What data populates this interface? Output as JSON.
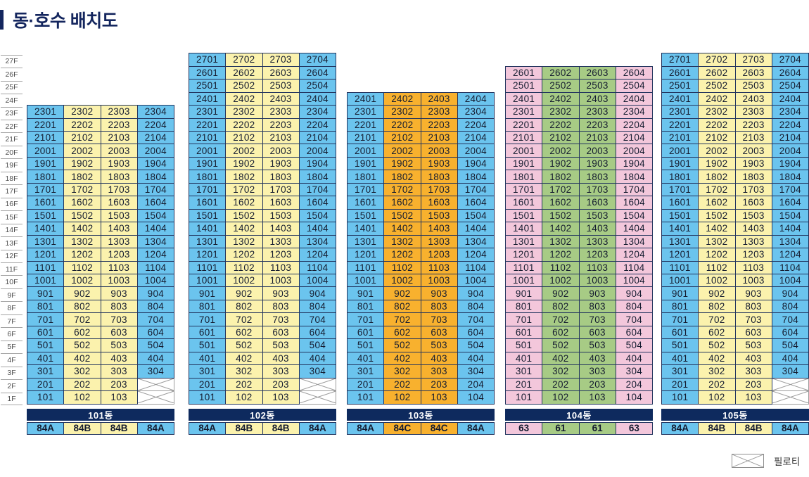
{
  "title": "동·호수 배치도",
  "legend": {
    "label": "필로티"
  },
  "colors": {
    "blue": "#6BC4EE",
    "yellow": "#FBF2AD",
    "orange": "#F8B12E",
    "green": "#A7CB85",
    "pink": "#F3C7DB",
    "navy": "#0E2A5E",
    "grid_border": "#22345E",
    "piloti_line": "#999999"
  },
  "floor_axis": {
    "labels": [
      "27F",
      "26F",
      "25F",
      "24F",
      "23F",
      "22F",
      "21F",
      "20F",
      "19F",
      "18F",
      "17F",
      "16F",
      "15F",
      "14F",
      "13F",
      "12F",
      "11F",
      "10F",
      "9F",
      "8F",
      "7F",
      "6F",
      "5F",
      "4F",
      "3F",
      "2F",
      "1F"
    ]
  },
  "buildings": [
    {
      "name": "101동",
      "column_colors": [
        "blue",
        "yellow",
        "yellow",
        "blue"
      ],
      "unit_types": [
        "84A",
        "84B",
        "84B",
        "84A"
      ],
      "rows": [
        [
          "2301",
          "2302",
          "2303",
          "2304"
        ],
        [
          "2201",
          "2202",
          "2203",
          "2204"
        ],
        [
          "2101",
          "2102",
          "2103",
          "2104"
        ],
        [
          "2001",
          "2002",
          "2003",
          "2004"
        ],
        [
          "1901",
          "1902",
          "1903",
          "1904"
        ],
        [
          "1801",
          "1802",
          "1803",
          "1804"
        ],
        [
          "1701",
          "1702",
          "1703",
          "1704"
        ],
        [
          "1601",
          "1602",
          "1603",
          "1604"
        ],
        [
          "1501",
          "1502",
          "1503",
          "1504"
        ],
        [
          "1401",
          "1402",
          "1403",
          "1404"
        ],
        [
          "1301",
          "1302",
          "1303",
          "1304"
        ],
        [
          "1201",
          "1202",
          "1203",
          "1204"
        ],
        [
          "1101",
          "1102",
          "1103",
          "1104"
        ],
        [
          "1001",
          "1002",
          "1003",
          "1004"
        ],
        [
          "901",
          "902",
          "903",
          "904"
        ],
        [
          "801",
          "802",
          "803",
          "804"
        ],
        [
          "701",
          "702",
          "703",
          "704"
        ],
        [
          "601",
          "602",
          "603",
          "604"
        ],
        [
          "501",
          "502",
          "503",
          "504"
        ],
        [
          "401",
          "402",
          "403",
          "404"
        ],
        [
          "301",
          "302",
          "303",
          "304"
        ],
        [
          "201",
          "202",
          "203",
          null
        ],
        [
          "101",
          "102",
          "103",
          null
        ]
      ]
    },
    {
      "name": "102동",
      "column_colors": [
        "blue",
        "yellow",
        "yellow",
        "blue"
      ],
      "unit_types": [
        "84A",
        "84B",
        "84B",
        "84A"
      ],
      "rows": [
        [
          "2701",
          "2702",
          "2703",
          "2704"
        ],
        [
          "2601",
          "2602",
          "2603",
          "2604"
        ],
        [
          "2501",
          "2502",
          "2503",
          "2504"
        ],
        [
          "2401",
          "2402",
          "2403",
          "2404"
        ],
        [
          "2301",
          "2302",
          "2303",
          "2304"
        ],
        [
          "2201",
          "2202",
          "2203",
          "2204"
        ],
        [
          "2101",
          "2102",
          "2103",
          "2104"
        ],
        [
          "2001",
          "2002",
          "2003",
          "2004"
        ],
        [
          "1901",
          "1902",
          "1903",
          "1904"
        ],
        [
          "1801",
          "1802",
          "1803",
          "1804"
        ],
        [
          "1701",
          "1702",
          "1703",
          "1704"
        ],
        [
          "1601",
          "1602",
          "1603",
          "1604"
        ],
        [
          "1501",
          "1502",
          "1503",
          "1504"
        ],
        [
          "1401",
          "1402",
          "1403",
          "1404"
        ],
        [
          "1301",
          "1302",
          "1303",
          "1304"
        ],
        [
          "1201",
          "1202",
          "1203",
          "1204"
        ],
        [
          "1101",
          "1102",
          "1103",
          "1104"
        ],
        [
          "1001",
          "1002",
          "1003",
          "1004"
        ],
        [
          "901",
          "902",
          "903",
          "904"
        ],
        [
          "801",
          "802",
          "803",
          "804"
        ],
        [
          "701",
          "702",
          "703",
          "704"
        ],
        [
          "601",
          "602",
          "603",
          "604"
        ],
        [
          "501",
          "502",
          "503",
          "504"
        ],
        [
          "401",
          "402",
          "403",
          "404"
        ],
        [
          "301",
          "302",
          "303",
          "304"
        ],
        [
          "201",
          "202",
          "203",
          null
        ],
        [
          "101",
          "102",
          "103",
          null
        ]
      ]
    },
    {
      "name": "103동",
      "column_colors": [
        "blue",
        "orange",
        "orange",
        "blue"
      ],
      "unit_types": [
        "84A",
        "84C",
        "84C",
        "84A"
      ],
      "rows": [
        [
          "2401",
          "2402",
          "2403",
          "2404"
        ],
        [
          "2301",
          "2302",
          "2303",
          "2304"
        ],
        [
          "2201",
          "2202",
          "2203",
          "2204"
        ],
        [
          "2101",
          "2102",
          "2103",
          "2104"
        ],
        [
          "2001",
          "2002",
          "2003",
          "2004"
        ],
        [
          "1901",
          "1902",
          "1903",
          "1904"
        ],
        [
          "1801",
          "1802",
          "1803",
          "1804"
        ],
        [
          "1701",
          "1702",
          "1703",
          "1704"
        ],
        [
          "1601",
          "1602",
          "1603",
          "1604"
        ],
        [
          "1501",
          "1502",
          "1503",
          "1504"
        ],
        [
          "1401",
          "1402",
          "1403",
          "1404"
        ],
        [
          "1301",
          "1302",
          "1303",
          "1304"
        ],
        [
          "1201",
          "1202",
          "1203",
          "1204"
        ],
        [
          "1101",
          "1102",
          "1103",
          "1104"
        ],
        [
          "1001",
          "1002",
          "1003",
          "1004"
        ],
        [
          "901",
          "902",
          "903",
          "904"
        ],
        [
          "801",
          "802",
          "803",
          "804"
        ],
        [
          "701",
          "702",
          "703",
          "704"
        ],
        [
          "601",
          "602",
          "603",
          "604"
        ],
        [
          "501",
          "502",
          "503",
          "504"
        ],
        [
          "401",
          "402",
          "403",
          "404"
        ],
        [
          "301",
          "302",
          "303",
          "304"
        ],
        [
          "201",
          "202",
          "203",
          "204"
        ],
        [
          "101",
          "102",
          "103",
          "104"
        ]
      ]
    },
    {
      "name": "104동",
      "column_colors": [
        "pink",
        "green",
        "green",
        "pink"
      ],
      "unit_types": [
        "63",
        "61",
        "61",
        "63"
      ],
      "rows": [
        [
          "2601",
          "2602",
          "2603",
          "2604"
        ],
        [
          "2501",
          "2502",
          "2503",
          "2504"
        ],
        [
          "2401",
          "2402",
          "2403",
          "2404"
        ],
        [
          "2301",
          "2302",
          "2303",
          "2304"
        ],
        [
          "2201",
          "2202",
          "2203",
          "2204"
        ],
        [
          "2101",
          "2102",
          "2103",
          "2104"
        ],
        [
          "2001",
          "2002",
          "2003",
          "2004"
        ],
        [
          "1901",
          "1902",
          "1903",
          "1904"
        ],
        [
          "1801",
          "1802",
          "1803",
          "1804"
        ],
        [
          "1701",
          "1702",
          "1703",
          "1704"
        ],
        [
          "1601",
          "1602",
          "1603",
          "1604"
        ],
        [
          "1501",
          "1502",
          "1503",
          "1504"
        ],
        [
          "1401",
          "1402",
          "1403",
          "1404"
        ],
        [
          "1301",
          "1302",
          "1303",
          "1304"
        ],
        [
          "1201",
          "1202",
          "1203",
          "1204"
        ],
        [
          "1101",
          "1102",
          "1103",
          "1104"
        ],
        [
          "1001",
          "1002",
          "1003",
          "1004"
        ],
        [
          "901",
          "902",
          "903",
          "904"
        ],
        [
          "801",
          "802",
          "803",
          "804"
        ],
        [
          "701",
          "702",
          "703",
          "704"
        ],
        [
          "601",
          "602",
          "603",
          "604"
        ],
        [
          "501",
          "502",
          "503",
          "504"
        ],
        [
          "401",
          "402",
          "403",
          "404"
        ],
        [
          "301",
          "302",
          "303",
          "304"
        ],
        [
          "201",
          "202",
          "203",
          "204"
        ],
        [
          "101",
          "102",
          "103",
          "104"
        ]
      ]
    },
    {
      "name": "105동",
      "column_colors": [
        "blue",
        "yellow",
        "yellow",
        "blue"
      ],
      "unit_types": [
        "84A",
        "84B",
        "84B",
        "84A"
      ],
      "rows": [
        [
          "2701",
          "2702",
          "2703",
          "2704"
        ],
        [
          "2601",
          "2602",
          "2603",
          "2604"
        ],
        [
          "2501",
          "2502",
          "2503",
          "2504"
        ],
        [
          "2401",
          "2402",
          "2403",
          "2404"
        ],
        [
          "2301",
          "2302",
          "2303",
          "2304"
        ],
        [
          "2201",
          "2202",
          "2203",
          "2204"
        ],
        [
          "2101",
          "2102",
          "2103",
          "2104"
        ],
        [
          "2001",
          "2002",
          "2003",
          "2004"
        ],
        [
          "1901",
          "1902",
          "1903",
          "1904"
        ],
        [
          "1801",
          "1802",
          "1803",
          "1804"
        ],
        [
          "1701",
          "1702",
          "1703",
          "1704"
        ],
        [
          "1601",
          "1602",
          "1603",
          "1604"
        ],
        [
          "1501",
          "1502",
          "1503",
          "1504"
        ],
        [
          "1401",
          "1402",
          "1403",
          "1404"
        ],
        [
          "1301",
          "1302",
          "1303",
          "1304"
        ],
        [
          "1201",
          "1202",
          "1203",
          "1204"
        ],
        [
          "1101",
          "1102",
          "1103",
          "1104"
        ],
        [
          "1001",
          "1002",
          "1003",
          "1004"
        ],
        [
          "901",
          "902",
          "903",
          "904"
        ],
        [
          "801",
          "802",
          "803",
          "804"
        ],
        [
          "701",
          "702",
          "703",
          "704"
        ],
        [
          "601",
          "602",
          "603",
          "604"
        ],
        [
          "501",
          "502",
          "503",
          "504"
        ],
        [
          "401",
          "402",
          "403",
          "404"
        ],
        [
          "301",
          "302",
          "303",
          "304"
        ],
        [
          "201",
          "202",
          "203",
          null
        ],
        [
          "101",
          "102",
          "103",
          null
        ]
      ]
    }
  ]
}
